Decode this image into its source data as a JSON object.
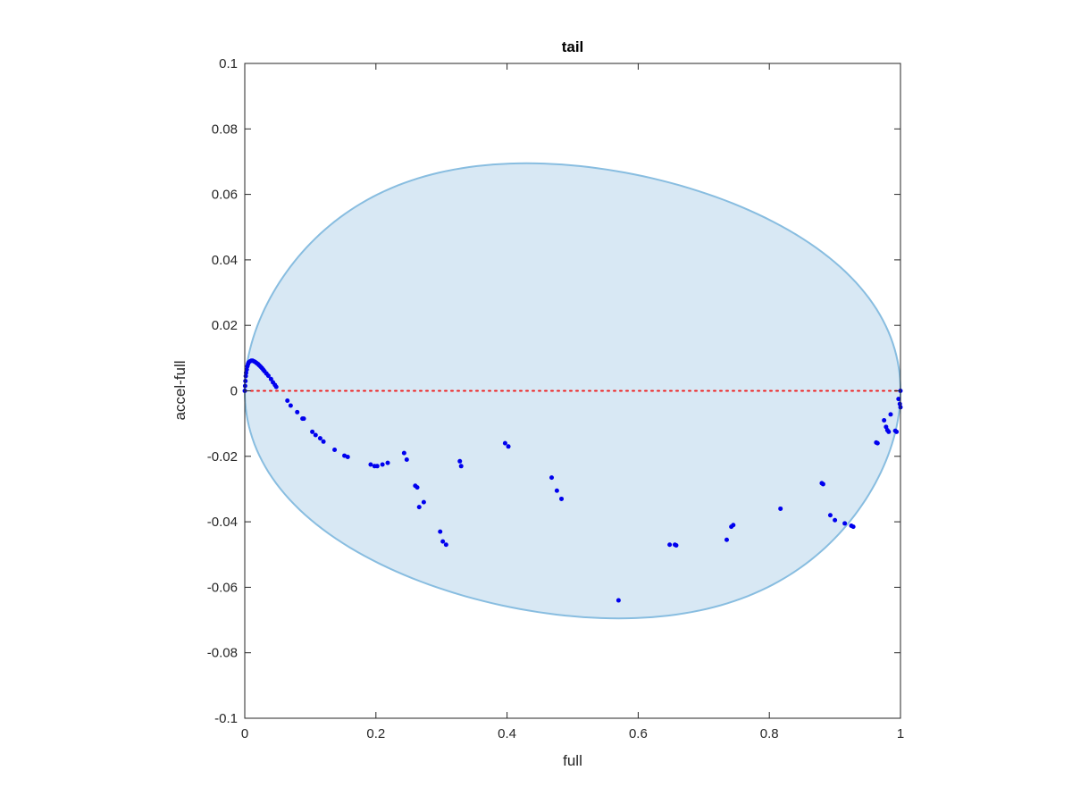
{
  "chart_data": {
    "type": "scatter",
    "title": "tail",
    "xlabel": "full",
    "ylabel": "accel-full",
    "xlim": [
      0,
      1
    ],
    "ylim": [
      -0.1,
      0.1
    ],
    "xticks": [
      0,
      0.2,
      0.4,
      0.6,
      0.8,
      1
    ],
    "xtick_labels": [
      "0",
      "0.2",
      "0.4",
      "0.6",
      "0.8",
      "1"
    ],
    "yticks": [
      0.1,
      0.08,
      0.06,
      0.04,
      0.02,
      0,
      -0.02,
      -0.04,
      -0.06,
      -0.08,
      -0.1
    ],
    "ytick_labels": [
      "0.1",
      "0.08",
      "0.06",
      "0.04",
      "0.02",
      "0",
      "-0.02",
      "-0.04",
      "-0.06",
      "-0.08",
      "-0.1"
    ],
    "grid": false,
    "colors": {
      "points": "#0000ee",
      "ellipse_fill": "#d8e8f4",
      "ellipse_edge": "#88bde0",
      "zero_line": "#ee2222",
      "axes": "#262626"
    },
    "ellipse": {
      "center_x": 0.5,
      "center_y": 0,
      "radius_x": 0.5,
      "radius_y": 0.0695,
      "top_peak_x": 0.43,
      "bottom_peak_x": 0.57
    },
    "reference_line": {
      "y": 0,
      "style": "dotted"
    },
    "series": [
      {
        "points": [
          [
            0.0,
            0.0
          ],
          [
            0.0005,
            0.0015
          ],
          [
            0.001,
            0.003
          ],
          [
            0.0015,
            0.0045
          ],
          [
            0.002,
            0.0055
          ],
          [
            0.003,
            0.0065
          ],
          [
            0.004,
            0.0075
          ],
          [
            0.005,
            0.0082
          ],
          [
            0.006,
            0.0087
          ],
          [
            0.008,
            0.009
          ],
          [
            0.01,
            0.0092
          ],
          [
            0.012,
            0.0092
          ],
          [
            0.014,
            0.009
          ],
          [
            0.016,
            0.0088
          ],
          [
            0.018,
            0.0085
          ],
          [
            0.02,
            0.0082
          ],
          [
            0.022,
            0.0078
          ],
          [
            0.024,
            0.0074
          ],
          [
            0.026,
            0.007
          ],
          [
            0.028,
            0.0065
          ],
          [
            0.03,
            0.006
          ],
          [
            0.033,
            0.0053
          ],
          [
            0.036,
            0.0046
          ],
          [
            0.04,
            0.0036
          ],
          [
            0.043,
            0.0026
          ],
          [
            0.046,
            0.0018
          ],
          [
            0.048,
            0.0012
          ],
          [
            0.065,
            -0.003
          ],
          [
            0.07,
            -0.0045
          ],
          [
            0.08,
            -0.0065
          ],
          [
            0.088,
            -0.0085
          ],
          [
            0.09,
            -0.0085
          ],
          [
            0.103,
            -0.0125
          ],
          [
            0.108,
            -0.0135
          ],
          [
            0.115,
            -0.0145
          ],
          [
            0.12,
            -0.0155
          ],
          [
            0.137,
            -0.018
          ],
          [
            0.152,
            -0.0198
          ],
          [
            0.157,
            -0.0202
          ],
          [
            0.192,
            -0.0225
          ],
          [
            0.198,
            -0.023
          ],
          [
            0.202,
            -0.023
          ],
          [
            0.21,
            -0.0225
          ],
          [
            0.218,
            -0.022
          ],
          [
            0.243,
            -0.019
          ],
          [
            0.247,
            -0.021
          ],
          [
            0.26,
            -0.029
          ],
          [
            0.263,
            -0.0295
          ],
          [
            0.266,
            -0.0355
          ],
          [
            0.273,
            -0.034
          ],
          [
            0.298,
            -0.043
          ],
          [
            0.302,
            -0.046
          ],
          [
            0.307,
            -0.047
          ],
          [
            0.328,
            -0.0215
          ],
          [
            0.33,
            -0.023
          ],
          [
            0.397,
            -0.016
          ],
          [
            0.402,
            -0.017
          ],
          [
            0.468,
            -0.0265
          ],
          [
            0.476,
            -0.0305
          ],
          [
            0.483,
            -0.033
          ],
          [
            0.57,
            -0.064
          ],
          [
            0.648,
            -0.047
          ],
          [
            0.656,
            -0.047
          ],
          [
            0.658,
            -0.0472
          ],
          [
            0.735,
            -0.0455
          ],
          [
            0.742,
            -0.0415
          ],
          [
            0.745,
            -0.041
          ],
          [
            0.817,
            -0.036
          ],
          [
            0.88,
            -0.0282
          ],
          [
            0.882,
            -0.0285
          ],
          [
            0.893,
            -0.038
          ],
          [
            0.9,
            -0.0395
          ],
          [
            0.915,
            -0.0405
          ],
          [
            0.925,
            -0.0412
          ],
          [
            0.928,
            -0.0415
          ],
          [
            0.963,
            -0.0158
          ],
          [
            0.965,
            -0.016
          ],
          [
            0.975,
            -0.009
          ],
          [
            0.978,
            -0.011
          ],
          [
            0.98,
            -0.012
          ],
          [
            0.982,
            -0.0125
          ],
          [
            0.985,
            -0.0072
          ],
          [
            0.992,
            -0.0122
          ],
          [
            0.994,
            -0.0125
          ],
          [
            0.997,
            -0.0025
          ],
          [
            0.999,
            -0.004
          ],
          [
            1.0,
            0.0
          ],
          [
            1.0,
            -0.005
          ]
        ]
      }
    ]
  }
}
